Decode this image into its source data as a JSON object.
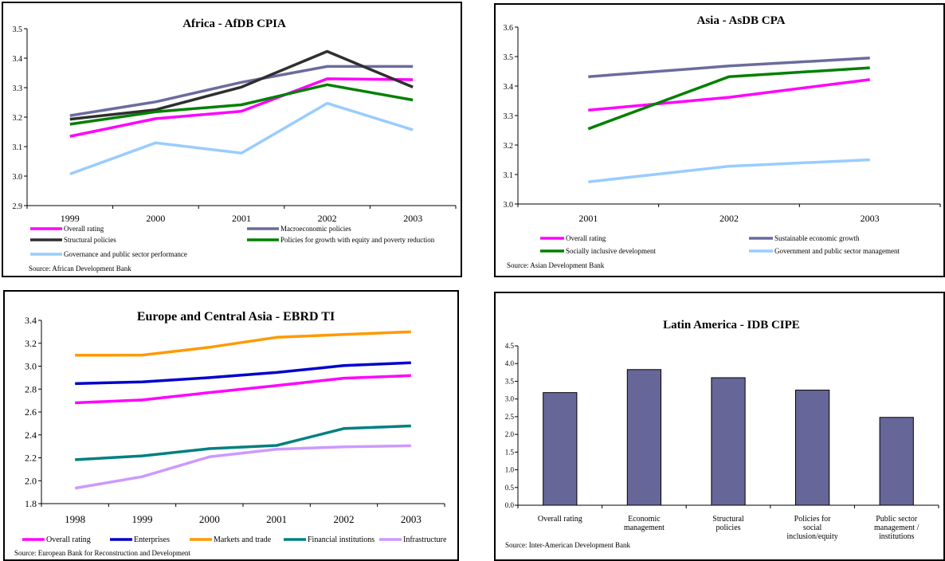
{
  "panels": [
    {
      "chart_data": {
        "type": "line",
        "title": "Africa - AfDB CPIA",
        "x": [
          "1999",
          "2000",
          "2001",
          "2002",
          "2003"
        ],
        "ylim": [
          2.9,
          3.5
        ],
        "yticks": [
          "2.9",
          "3.0",
          "3.1",
          "3.2",
          "3.3",
          "3.4",
          "3.5"
        ],
        "series": [
          {
            "name": "Overall rating",
            "color": "#ff00ff",
            "values": [
              3.135,
              3.195,
              3.22,
              3.33,
              3.327
            ]
          },
          {
            "name": "Macroeconomic policies",
            "color": "#6b6b9e",
            "values": [
              3.205,
              3.252,
              3.318,
              3.372,
              3.372
            ]
          },
          {
            "name": "Structural policies",
            "color": "#2f2f2f",
            "values": [
              3.193,
              3.225,
              3.302,
              3.423,
              3.302
            ]
          },
          {
            "name": "Policies for growth with equity and poverty reduction",
            "color": "#008000",
            "values": [
              3.176,
              3.218,
              3.242,
              3.31,
              3.258
            ]
          },
          {
            "name": "Governance and public sector performance",
            "color": "#99ccff",
            "values": [
              3.007,
              3.113,
              3.078,
              3.247,
              3.157
            ]
          }
        ],
        "legend": "bottom",
        "source": "Source:  African Development Bank"
      }
    },
    {
      "chart_data": {
        "type": "line",
        "title": "Asia - AsDB CPA",
        "x": [
          "2001",
          "2002",
          "2003"
        ],
        "ylim": [
          3.0,
          3.6
        ],
        "yticks": [
          "3.0",
          "3.1",
          "3.2",
          "3.3",
          "3.4",
          "3.5",
          "3.6"
        ],
        "series": [
          {
            "name": "Overall rating",
            "color": "#ff00ff",
            "values": [
              3.318,
              3.362,
              3.422
            ]
          },
          {
            "name": "Sustainable economic growth",
            "color": "#6b6b9e",
            "values": [
              3.432,
              3.468,
              3.495
            ]
          },
          {
            "name": "Socially inclusive development",
            "color": "#008000",
            "values": [
              3.255,
              3.432,
              3.462
            ]
          },
          {
            "name": "Government and public sector management",
            "color": "#99ccff",
            "values": [
              3.075,
              3.128,
              3.15
            ]
          }
        ],
        "legend": "bottom",
        "source": "Source:  Asian Development Bank"
      }
    },
    {
      "chart_data": {
        "type": "line",
        "title": "Europe and Central Asia - EBRD TI",
        "x": [
          "1998",
          "1999",
          "2000",
          "2001",
          "2002",
          "2003"
        ],
        "ylim": [
          1.8,
          3.4
        ],
        "yticks": [
          "1.8",
          "2.0",
          "2.2",
          "2.4",
          "2.6",
          "2.8",
          "3.0",
          "3.2",
          "3.4"
        ],
        "series": [
          {
            "name": "Overall rating",
            "color": "#ff00ff",
            "values": [
              2.68,
              2.705,
              2.77,
              2.83,
              2.895,
              2.918
            ]
          },
          {
            "name": "Enterprises",
            "color": "#0000cc",
            "values": [
              2.848,
              2.863,
              2.9,
              2.945,
              3.005,
              3.03
            ]
          },
          {
            "name": "Markets and trade",
            "color": "#ff9900",
            "values": [
              3.095,
              3.097,
              3.165,
              3.252,
              3.277,
              3.3
            ]
          },
          {
            "name": "Financial institutions",
            "color": "#008080",
            "values": [
              2.183,
              2.217,
              2.28,
              2.308,
              2.455,
              2.478
            ]
          },
          {
            "name": "Infrastructure",
            "color": "#cc99ff",
            "values": [
              1.935,
              2.035,
              2.208,
              2.275,
              2.295,
              2.305
            ]
          }
        ],
        "legend": "bottom",
        "source": "Source:  European Bank for Reconstruction and Development"
      }
    },
    {
      "chart_data": {
        "type": "bar",
        "title": "Latin America - IDB CIPE",
        "categories": [
          [
            "Overall rating"
          ],
          [
            "Economic",
            "management"
          ],
          [
            "Structural",
            "policies"
          ],
          [
            "Policies for",
            "social",
            "inclusion/equity"
          ],
          [
            "Public sector",
            "management /",
            "institutions"
          ]
        ],
        "values": [
          3.18,
          3.83,
          3.6,
          3.25,
          2.48
        ],
        "color": "#666699",
        "ylim": [
          0,
          4.5
        ],
        "yticks": [
          "0.0",
          "0.5",
          "1.0",
          "1.5",
          "2.0",
          "2.5",
          "3.0",
          "3.5",
          "4.0",
          "4.5"
        ],
        "source": "Source:  Inter-American Development Bank"
      }
    }
  ]
}
